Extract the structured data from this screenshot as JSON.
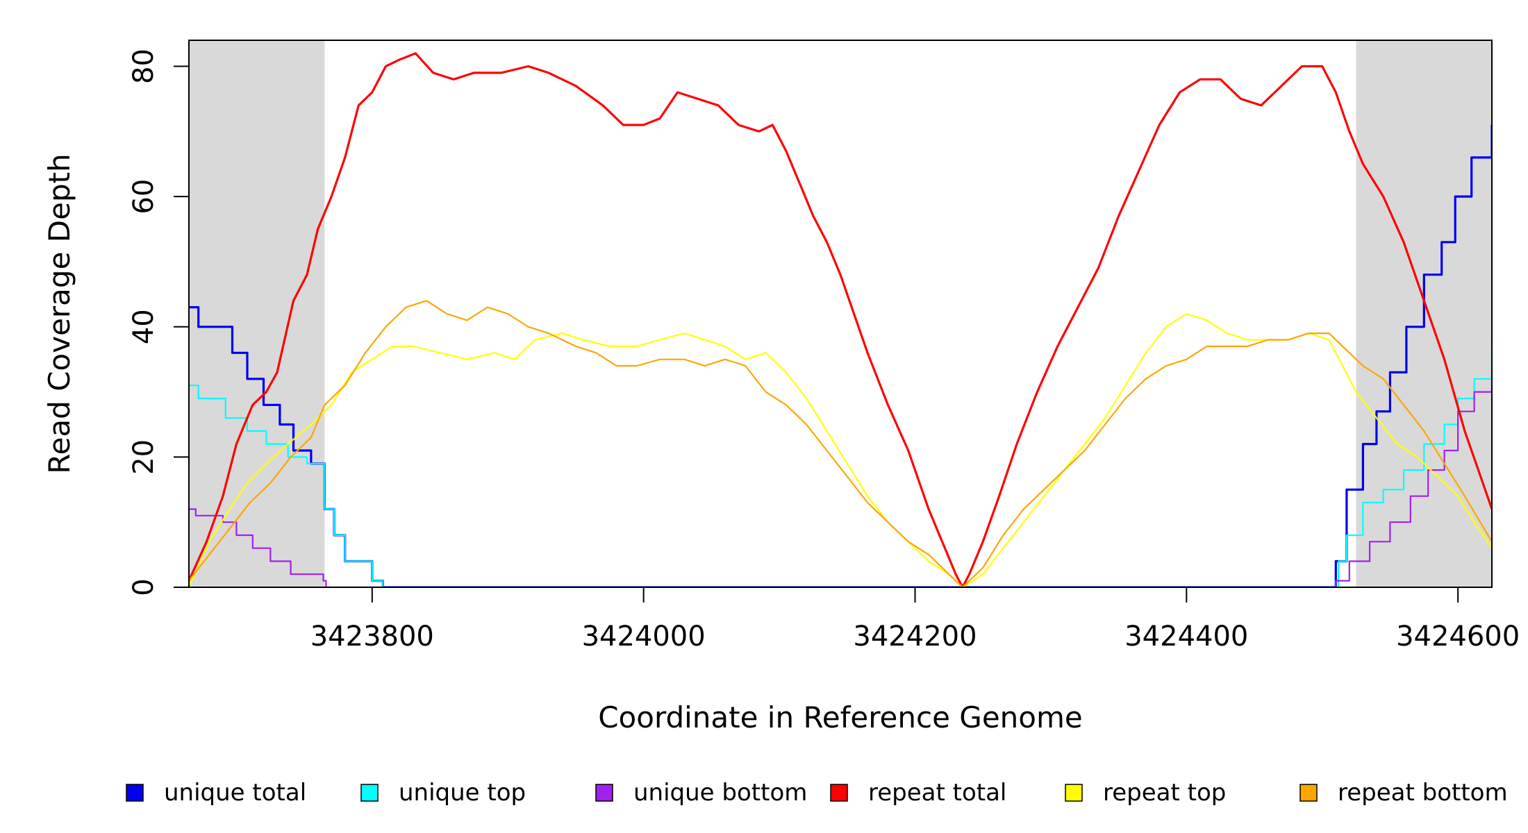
{
  "chart_data": {
    "type": "line",
    "xlabel": "Coordinate in Reference Genome",
    "ylabel": "Read Coverage Depth",
    "xlim": [
      3423665,
      3424625
    ],
    "ylim": [
      0,
      84
    ],
    "x_ticks": [
      {
        "value": 3423800,
        "label": "3423800"
      },
      {
        "value": 3424000,
        "label": "3424000"
      },
      {
        "value": 3424200,
        "label": "3424200"
      },
      {
        "value": 3424400,
        "label": "3424400"
      },
      {
        "value": 3424600,
        "label": "3424600"
      }
    ],
    "y_ticks": [
      {
        "value": 0,
        "label": "0"
      },
      {
        "value": 20,
        "label": "20"
      },
      {
        "value": 40,
        "label": "40"
      },
      {
        "value": 60,
        "label": "60"
      },
      {
        "value": 80,
        "label": "80"
      }
    ],
    "shaded_regions": [
      {
        "x0": 3423665,
        "x1": 3423765,
        "color": "#d9d9d9"
      },
      {
        "x0": 3424525,
        "x1": 3424625,
        "color": "#d9d9d9"
      }
    ],
    "grid": false,
    "legend_position": "bottom",
    "series": [
      {
        "name": "unique total",
        "color": "#0000ee",
        "width": 3.2,
        "step": true,
        "points": [
          [
            3423665,
            43
          ],
          [
            3423672,
            40
          ],
          [
            3423697,
            36
          ],
          [
            3423708,
            32
          ],
          [
            3423720,
            28
          ],
          [
            3423732,
            25
          ],
          [
            3423742,
            21
          ],
          [
            3423755,
            19
          ],
          [
            3423765,
            12
          ],
          [
            3423772,
            8
          ],
          [
            3423780,
            4
          ],
          [
            3423800,
            1
          ],
          [
            3423808,
            0
          ],
          [
            3424505,
            0
          ],
          [
            3424510,
            4
          ],
          [
            3424518,
            15
          ],
          [
            3424530,
            22
          ],
          [
            3424540,
            27
          ],
          [
            3424550,
            33
          ],
          [
            3424562,
            40
          ],
          [
            3424575,
            48
          ],
          [
            3424588,
            53
          ],
          [
            3424598,
            60
          ],
          [
            3424610,
            66
          ],
          [
            3424625,
            71
          ]
        ]
      },
      {
        "name": "unique top",
        "color": "#00ffff",
        "width": 2.2,
        "step": true,
        "points": [
          [
            3423665,
            31
          ],
          [
            3423672,
            29
          ],
          [
            3423692,
            26
          ],
          [
            3423708,
            24
          ],
          [
            3423722,
            22
          ],
          [
            3423738,
            20
          ],
          [
            3423752,
            19
          ],
          [
            3423765,
            12
          ],
          [
            3423772,
            8
          ],
          [
            3423780,
            4
          ],
          [
            3423800,
            1
          ],
          [
            3423808,
            0
          ],
          [
            3424505,
            0
          ],
          [
            3424512,
            4
          ],
          [
            3424518,
            8
          ],
          [
            3424530,
            13
          ],
          [
            3424545,
            15
          ],
          [
            3424560,
            18
          ],
          [
            3424575,
            22
          ],
          [
            3424590,
            25
          ],
          [
            3424600,
            29
          ],
          [
            3424612,
            32
          ],
          [
            3424625,
            38
          ]
        ]
      },
      {
        "name": "unique bottom",
        "color": "#a020f0",
        "width": 2.2,
        "step": true,
        "points": [
          [
            3423665,
            12
          ],
          [
            3423670,
            11
          ],
          [
            3423690,
            10
          ],
          [
            3423700,
            8
          ],
          [
            3423712,
            6
          ],
          [
            3423725,
            4
          ],
          [
            3423740,
            2
          ],
          [
            3423764,
            1
          ],
          [
            3423766,
            0
          ],
          [
            3424505,
            0
          ],
          [
            3424510,
            1
          ],
          [
            3424520,
            4
          ],
          [
            3424535,
            7
          ],
          [
            3424550,
            10
          ],
          [
            3424565,
            14
          ],
          [
            3424578,
            18
          ],
          [
            3424590,
            21
          ],
          [
            3424600,
            27
          ],
          [
            3424612,
            30
          ],
          [
            3424625,
            33
          ]
        ]
      },
      {
        "name": "repeat total",
        "color": "#ff0000",
        "width": 3.2,
        "step": false,
        "points": [
          [
            3423665,
            1
          ],
          [
            3423678,
            7
          ],
          [
            3423690,
            14
          ],
          [
            3423700,
            22
          ],
          [
            3423712,
            28
          ],
          [
            3423722,
            30
          ],
          [
            3423730,
            33
          ],
          [
            3423742,
            44
          ],
          [
            3423752,
            48
          ],
          [
            3423760,
            55
          ],
          [
            3423770,
            60
          ],
          [
            3423780,
            66
          ],
          [
            3423790,
            74
          ],
          [
            3423800,
            76
          ],
          [
            3423810,
            80
          ],
          [
            3423820,
            81
          ],
          [
            3423832,
            82
          ],
          [
            3423845,
            79
          ],
          [
            3423860,
            78
          ],
          [
            3423875,
            79
          ],
          [
            3423895,
            79
          ],
          [
            3423915,
            80
          ],
          [
            3423930,
            79
          ],
          [
            3423950,
            77
          ],
          [
            3423970,
            74
          ],
          [
            3423985,
            71
          ],
          [
            3424000,
            71
          ],
          [
            3424012,
            72
          ],
          [
            3424025,
            76
          ],
          [
            3424040,
            75
          ],
          [
            3424055,
            74
          ],
          [
            3424070,
            71
          ],
          [
            3424085,
            70
          ],
          [
            3424095,
            71
          ],
          [
            3424105,
            67
          ],
          [
            3424115,
            62
          ],
          [
            3424125,
            57
          ],
          [
            3424135,
            53
          ],
          [
            3424145,
            48
          ],
          [
            3424155,
            42
          ],
          [
            3424165,
            36
          ],
          [
            3424180,
            28
          ],
          [
            3424195,
            21
          ],
          [
            3424210,
            12
          ],
          [
            3424222,
            6
          ],
          [
            3424230,
            2
          ],
          [
            3424235,
            0
          ],
          [
            3424240,
            2
          ],
          [
            3424250,
            7
          ],
          [
            3424262,
            14
          ],
          [
            3424275,
            22
          ],
          [
            3424290,
            30
          ],
          [
            3424305,
            37
          ],
          [
            3424320,
            43
          ],
          [
            3424335,
            49
          ],
          [
            3424350,
            57
          ],
          [
            3424365,
            64
          ],
          [
            3424380,
            71
          ],
          [
            3424395,
            76
          ],
          [
            3424410,
            78
          ],
          [
            3424425,
            78
          ],
          [
            3424440,
            75
          ],
          [
            3424455,
            74
          ],
          [
            3424470,
            77
          ],
          [
            3424485,
            80
          ],
          [
            3424500,
            80
          ],
          [
            3424510,
            76
          ],
          [
            3424520,
            70
          ],
          [
            3424530,
            65
          ],
          [
            3424545,
            60
          ],
          [
            3424560,
            53
          ],
          [
            3424575,
            44
          ],
          [
            3424590,
            35
          ],
          [
            3424605,
            24
          ],
          [
            3424615,
            18
          ],
          [
            3424625,
            12
          ]
        ]
      },
      {
        "name": "repeat top",
        "color": "#ffff00",
        "width": 2.2,
        "step": false,
        "points": [
          [
            3423665,
            0
          ],
          [
            3423680,
            7
          ],
          [
            3423695,
            12
          ],
          [
            3423708,
            16
          ],
          [
            3423722,
            19
          ],
          [
            3423738,
            22
          ],
          [
            3423755,
            25
          ],
          [
            3423770,
            28
          ],
          [
            3423785,
            33
          ],
          [
            3423800,
            35
          ],
          [
            3423815,
            37
          ],
          [
            3423830,
            37
          ],
          [
            3423850,
            36
          ],
          [
            3423870,
            35
          ],
          [
            3423890,
            36
          ],
          [
            3423905,
            35
          ],
          [
            3423920,
            38
          ],
          [
            3423940,
            39
          ],
          [
            3423955,
            38
          ],
          [
            3423975,
            37
          ],
          [
            3423995,
            37
          ],
          [
            3424012,
            38
          ],
          [
            3424030,
            39
          ],
          [
            3424045,
            38
          ],
          [
            3424060,
            37
          ],
          [
            3424075,
            35
          ],
          [
            3424090,
            36
          ],
          [
            3424105,
            33
          ],
          [
            3424120,
            29
          ],
          [
            3424135,
            24
          ],
          [
            3424150,
            19
          ],
          [
            3424165,
            14
          ],
          [
            3424180,
            10
          ],
          [
            3424195,
            7
          ],
          [
            3424210,
            4
          ],
          [
            3424225,
            2
          ],
          [
            3424235,
            0
          ],
          [
            3424250,
            2
          ],
          [
            3424265,
            6
          ],
          [
            3424280,
            10
          ],
          [
            3424295,
            14
          ],
          [
            3424310,
            18
          ],
          [
            3424325,
            22
          ],
          [
            3424340,
            26
          ],
          [
            3424355,
            31
          ],
          [
            3424370,
            36
          ],
          [
            3424385,
            40
          ],
          [
            3424400,
            42
          ],
          [
            3424415,
            41
          ],
          [
            3424430,
            39
          ],
          [
            3424445,
            38
          ],
          [
            3424460,
            38
          ],
          [
            3424475,
            38
          ],
          [
            3424490,
            39
          ],
          [
            3424505,
            38
          ],
          [
            3424515,
            34
          ],
          [
            3424525,
            30
          ],
          [
            3424540,
            26
          ],
          [
            3424555,
            22
          ],
          [
            3424570,
            20
          ],
          [
            3424585,
            17
          ],
          [
            3424600,
            14
          ],
          [
            3424612,
            10
          ],
          [
            3424625,
            6
          ]
        ]
      },
      {
        "name": "repeat bottom",
        "color": "#ffa500",
        "width": 2.2,
        "step": false,
        "points": [
          [
            3423665,
            1
          ],
          [
            3423680,
            5
          ],
          [
            3423695,
            9
          ],
          [
            3423710,
            13
          ],
          [
            3423725,
            16
          ],
          [
            3423740,
            20
          ],
          [
            3423755,
            23
          ],
          [
            3423765,
            28
          ],
          [
            3423780,
            31
          ],
          [
            3423795,
            36
          ],
          [
            3423810,
            40
          ],
          [
            3423825,
            43
          ],
          [
            3423840,
            44
          ],
          [
            3423855,
            42
          ],
          [
            3423870,
            41
          ],
          [
            3423885,
            43
          ],
          [
            3423900,
            42
          ],
          [
            3423915,
            40
          ],
          [
            3423930,
            39
          ],
          [
            3423950,
            37
          ],
          [
            3423965,
            36
          ],
          [
            3423980,
            34
          ],
          [
            3423995,
            34
          ],
          [
            3424012,
            35
          ],
          [
            3424030,
            35
          ],
          [
            3424045,
            34
          ],
          [
            3424060,
            35
          ],
          [
            3424075,
            34
          ],
          [
            3424090,
            30
          ],
          [
            3424105,
            28
          ],
          [
            3424120,
            25
          ],
          [
            3424135,
            21
          ],
          [
            3424150,
            17
          ],
          [
            3424165,
            13
          ],
          [
            3424180,
            10
          ],
          [
            3424195,
            7
          ],
          [
            3424210,
            5
          ],
          [
            3424225,
            2
          ],
          [
            3424235,
            0
          ],
          [
            3424250,
            3
          ],
          [
            3424265,
            8
          ],
          [
            3424280,
            12
          ],
          [
            3424295,
            15
          ],
          [
            3424310,
            18
          ],
          [
            3424325,
            21
          ],
          [
            3424340,
            25
          ],
          [
            3424355,
            29
          ],
          [
            3424370,
            32
          ],
          [
            3424385,
            34
          ],
          [
            3424400,
            35
          ],
          [
            3424415,
            37
          ],
          [
            3424430,
            37
          ],
          [
            3424445,
            37
          ],
          [
            3424460,
            38
          ],
          [
            3424475,
            38
          ],
          [
            3424490,
            39
          ],
          [
            3424505,
            39
          ],
          [
            3424515,
            37
          ],
          [
            3424530,
            34
          ],
          [
            3424545,
            32
          ],
          [
            3424560,
            28
          ],
          [
            3424575,
            24
          ],
          [
            3424590,
            19
          ],
          [
            3424605,
            14
          ],
          [
            3424625,
            7
          ]
        ]
      }
    ]
  }
}
